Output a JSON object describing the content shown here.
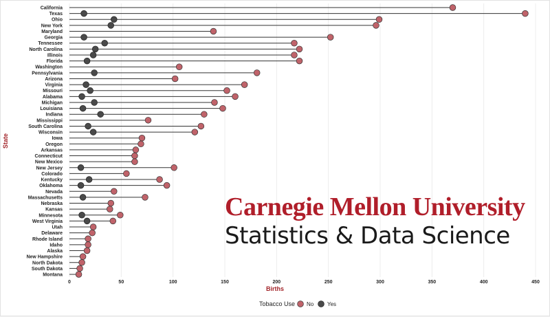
{
  "chart_data": {
    "type": "lollipop",
    "xlabel": "Births",
    "ylabel": "State",
    "xlim": [
      0,
      450
    ],
    "x_ticks": [
      0,
      50,
      100,
      150,
      200,
      250,
      300,
      350,
      400,
      450
    ],
    "grid": "vertical",
    "legend": {
      "title": "Tobacco Use",
      "placement": "bottom",
      "entries": [
        {
          "name": "No",
          "color": "#c0636a"
        },
        {
          "name": "Yes",
          "color": "#4a4a4a"
        }
      ]
    },
    "categories": [
      "California",
      "Texas",
      "Ohio",
      "New York",
      "Maryland",
      "Georgia",
      "Tennessee",
      "North Carolina",
      "Illinois",
      "Florida",
      "Washington",
      "Pennsylvania",
      "Arizona",
      "Virginia",
      "Missouri",
      "Alabama",
      "Michigan",
      "Louisiana",
      "Indiana",
      "Mississippi",
      "South Carolina",
      "Wisconsin",
      "Iowa",
      "Oregon",
      "Arkansas",
      "Connecticut",
      "New Mexico",
      "New Jersey",
      "Colorado",
      "Kentucky",
      "Oklahoma",
      "Nevada",
      "Massachusetts",
      "Nebraska",
      "Kansas",
      "Minnesota",
      "West Virginia",
      "Utah",
      "Delaware",
      "Rhode Island",
      "Idaho",
      "Alaska",
      "New Hampshire",
      "North Dakota",
      "South Dakota",
      "Montana"
    ],
    "series": [
      {
        "name": "No",
        "values": [
          370,
          440,
          299,
          296,
          139,
          252,
          217,
          222,
          217,
          222,
          106,
          181,
          102,
          169,
          152,
          160,
          140,
          148,
          130,
          76,
          127,
          121,
          70,
          69,
          64,
          63,
          63,
          101,
          55,
          87,
          94,
          43,
          73,
          40,
          39,
          49,
          42,
          23,
          22,
          18,
          18,
          17,
          13,
          12,
          10,
          9
        ]
      },
      {
        "name": "Yes",
        "values": [
          null,
          14,
          43,
          40,
          null,
          14,
          34,
          25,
          23,
          17,
          null,
          24,
          null,
          16,
          20,
          12,
          24,
          13,
          30,
          null,
          18,
          23,
          null,
          null,
          null,
          null,
          null,
          11,
          null,
          19,
          11,
          null,
          13,
          null,
          null,
          12,
          17,
          null,
          null,
          null,
          null,
          null,
          null,
          null,
          null,
          null
        ]
      }
    ]
  },
  "colors": {
    "no": "#c0636a",
    "yes": "#4a4a4a",
    "segment": "#333333",
    "grid": "#ececec",
    "axis_title": "#a3262b"
  },
  "watermark": {
    "line1": "Carnegie Mellon University",
    "line2": "Statistics & Data Science"
  }
}
